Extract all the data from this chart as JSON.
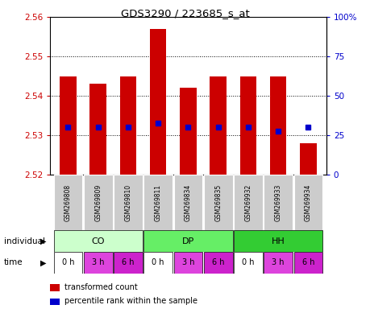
{
  "title": "GDS3290 / 223685_s_at",
  "samples": [
    "GSM269808",
    "GSM269809",
    "GSM269810",
    "GSM269811",
    "GSM269834",
    "GSM269835",
    "GSM269932",
    "GSM269933",
    "GSM269934"
  ],
  "bar_tops": [
    2.545,
    2.543,
    2.545,
    2.557,
    2.542,
    2.545,
    2.545,
    2.545,
    2.528
  ],
  "bar_bottoms": [
    2.52,
    2.52,
    2.52,
    2.52,
    2.52,
    2.52,
    2.52,
    2.52,
    2.52
  ],
  "percentile_values": [
    2.532,
    2.532,
    2.532,
    2.533,
    2.532,
    2.532,
    2.532,
    2.531,
    2.532
  ],
  "ylim": [
    2.52,
    2.56
  ],
  "yticks": [
    2.52,
    2.53,
    2.54,
    2.55,
    2.56
  ],
  "right_yticks": [
    0,
    25,
    50,
    75,
    100
  ],
  "right_ylabels": [
    "0",
    "25",
    "50",
    "75",
    "100%"
  ],
  "bar_color": "#cc0000",
  "percentile_color": "#0000cc",
  "groups": [
    {
      "label": "CO",
      "start": 0,
      "end": 3,
      "color": "#ccffcc"
    },
    {
      "label": "DP",
      "start": 3,
      "end": 6,
      "color": "#66ee66"
    },
    {
      "label": "HH",
      "start": 6,
      "end": 9,
      "color": "#33cc33"
    }
  ],
  "times": [
    "0 h",
    "3 h",
    "6 h",
    "0 h",
    "3 h",
    "6 h",
    "0 h",
    "3 h",
    "6 h"
  ],
  "time_colors": [
    "#ffffff",
    "#dd44dd",
    "#cc22cc",
    "#ffffff",
    "#dd44dd",
    "#cc22cc",
    "#ffffff",
    "#dd44dd",
    "#cc22cc"
  ],
  "individual_label": "individual",
  "time_label": "time",
  "legend_red": "transformed count",
  "legend_blue": "percentile rank within the sample",
  "bg_color": "#ffffff",
  "tick_label_color_left": "#cc0000",
  "tick_label_color_right": "#0000cc",
  "sample_bg": "#cccccc",
  "sample_fg": "#000000"
}
